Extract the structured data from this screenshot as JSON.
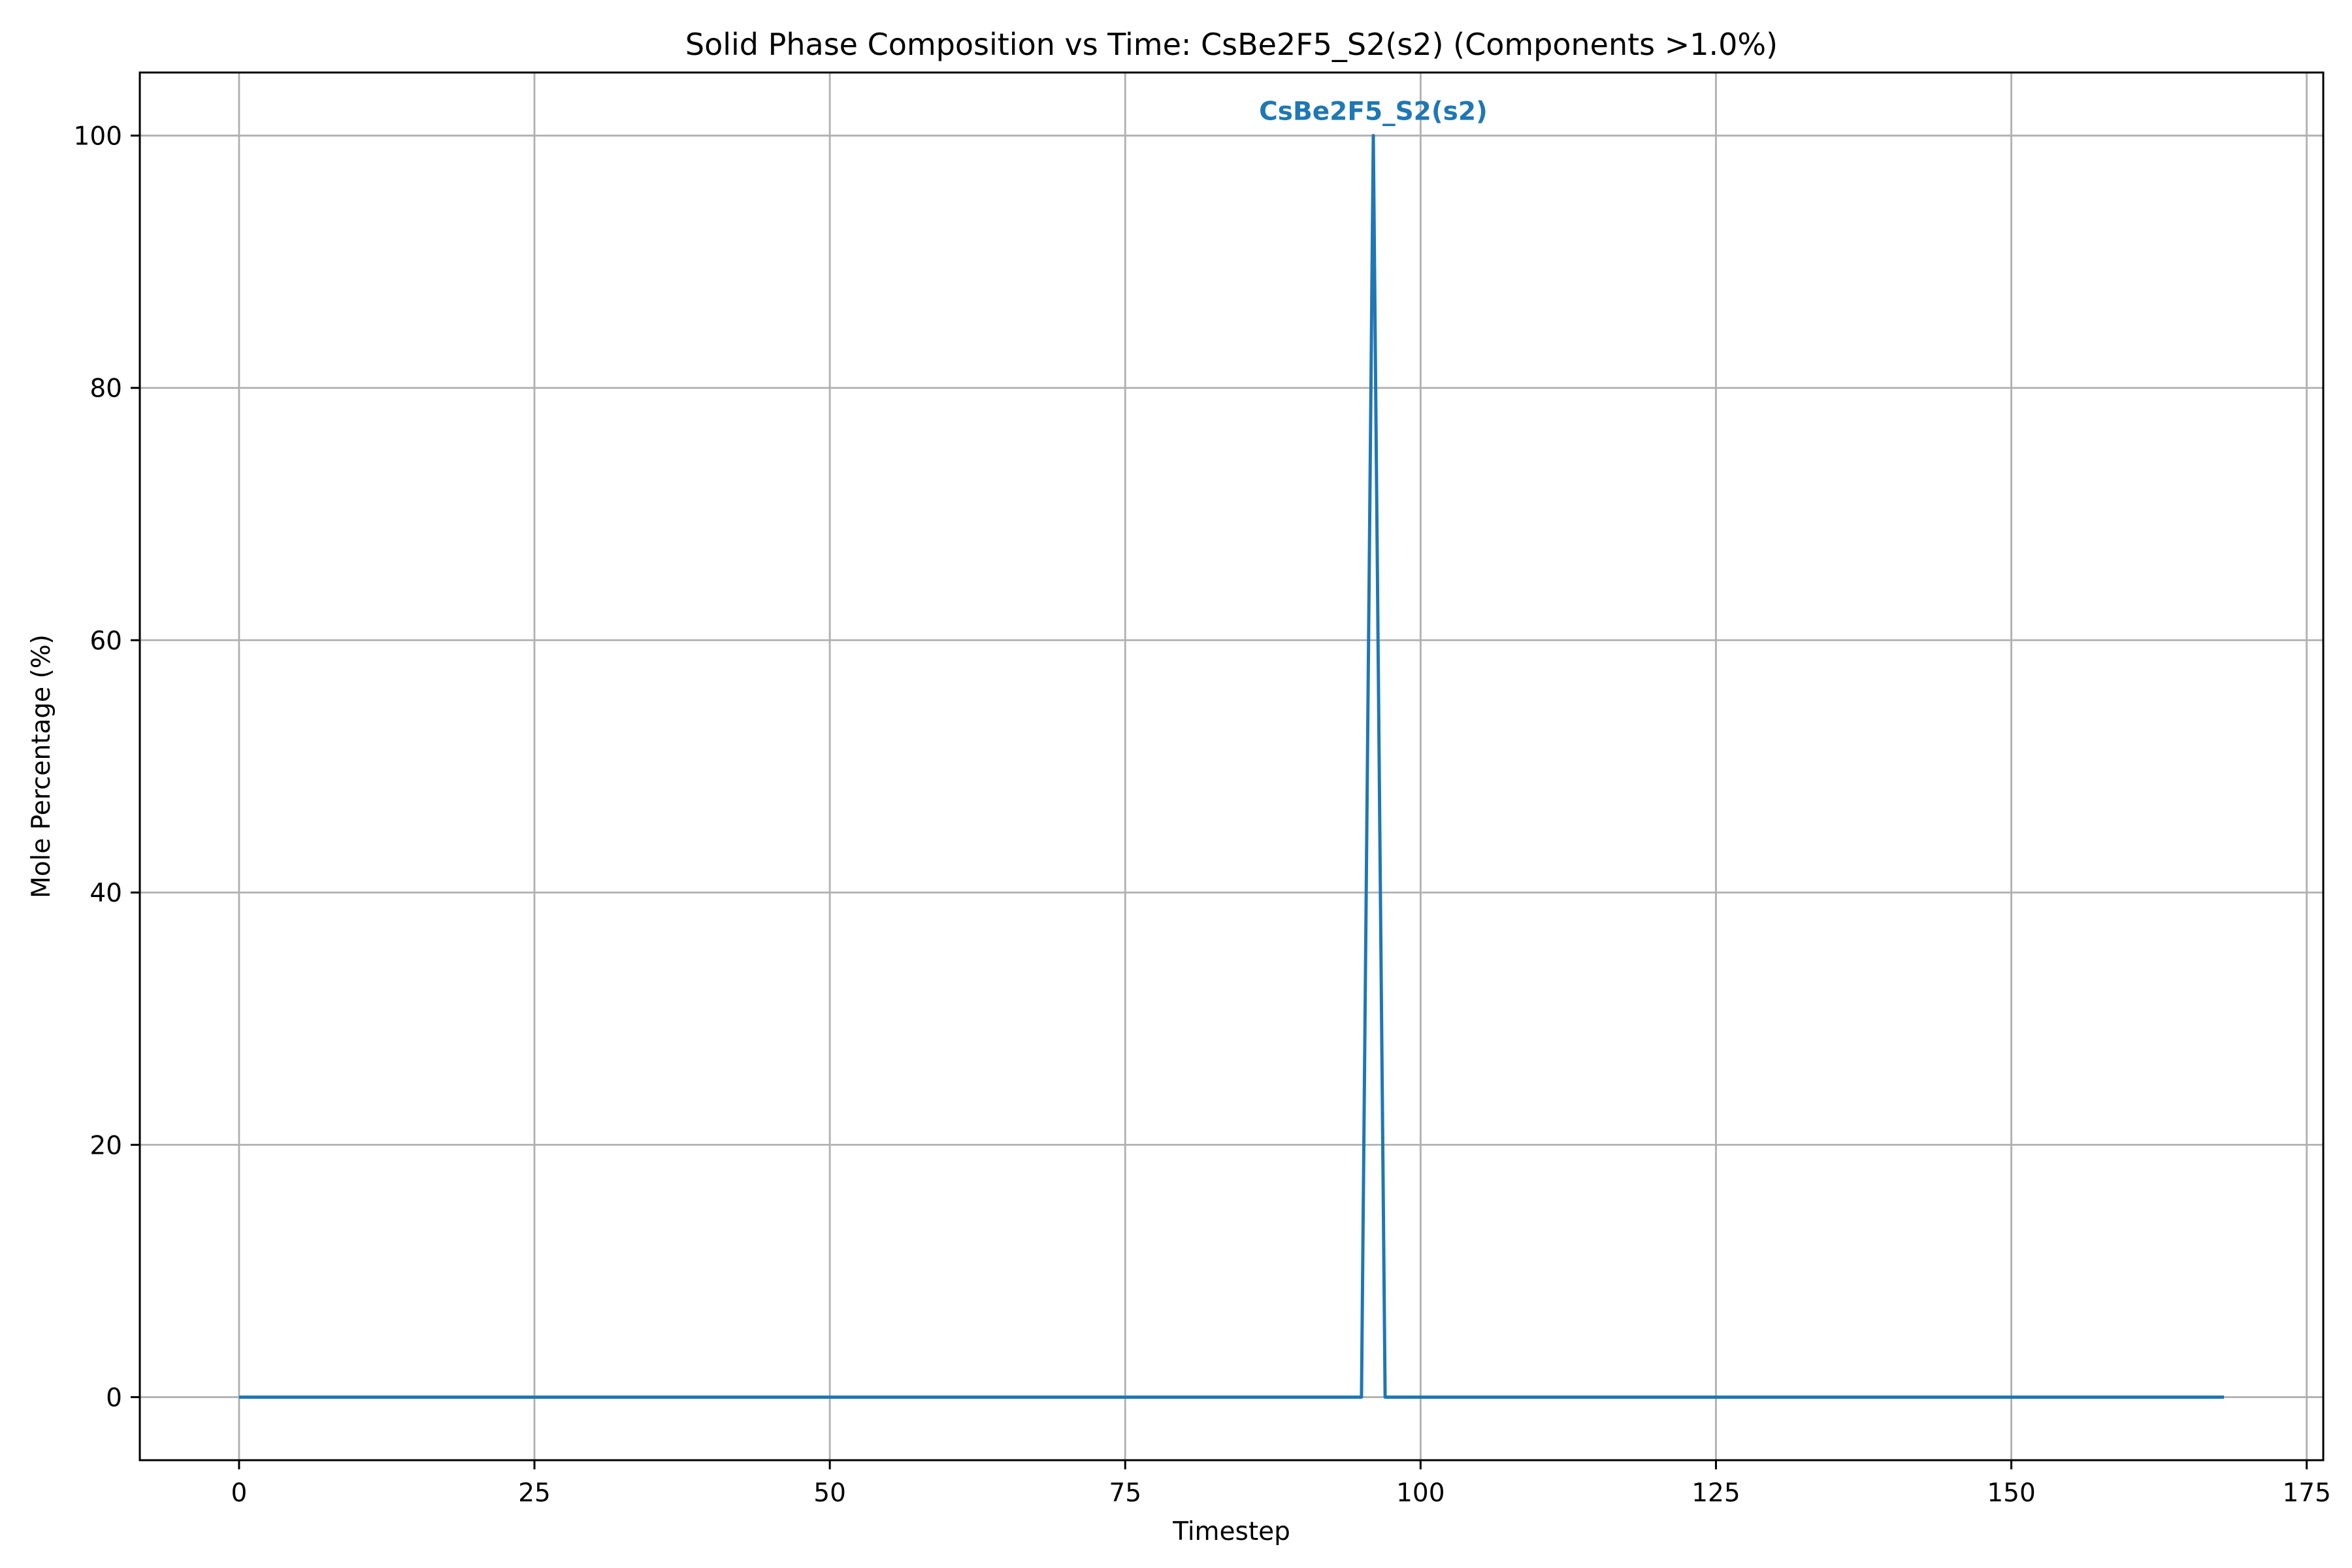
{
  "chart_data": {
    "type": "line",
    "title": "Solid Phase Composition vs Time: CsBe2F5_S2(s2) (Components >1.0%)",
    "xlabel": "Timestep",
    "ylabel": "Mole Percentage (%)",
    "xlim": [
      -8.4,
      176.4
    ],
    "ylim": [
      -5,
      105
    ],
    "xticks": [
      0,
      25,
      50,
      75,
      100,
      125,
      150,
      175
    ],
    "yticks": [
      0,
      20,
      40,
      60,
      80,
      100
    ],
    "grid": true,
    "series": [
      {
        "color": "#1f77b4",
        "x": [
          0,
          95,
          96,
          97,
          168
        ],
        "y": [
          0,
          0,
          100,
          0,
          0
        ]
      }
    ],
    "annotations": [
      {
        "text": "CsBe2F5_S2(s2)",
        "x": 96,
        "y": 100,
        "color": "#1f77b4"
      }
    ]
  }
}
